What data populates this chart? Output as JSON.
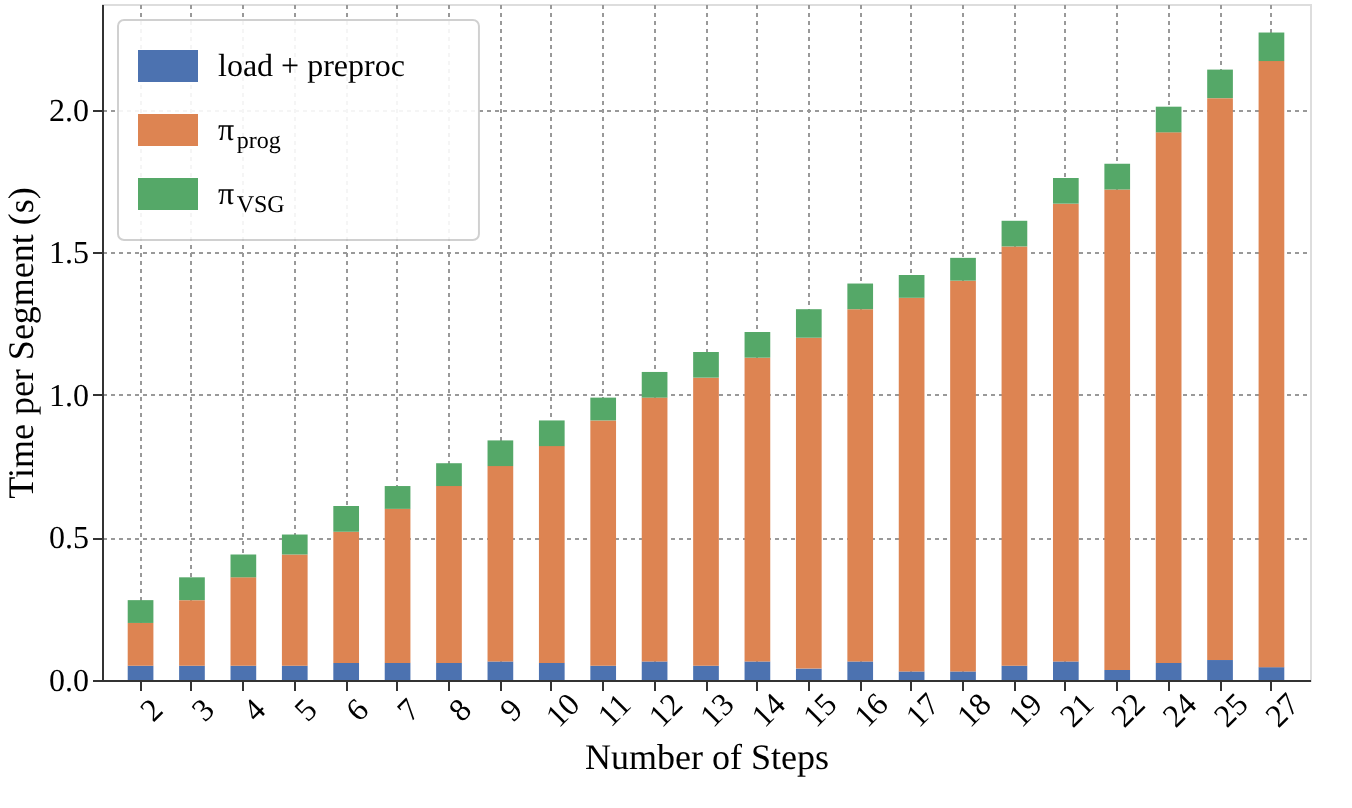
{
  "chart_data": {
    "type": "bar",
    "stacked": true,
    "xlabel": "Number of Steps",
    "ylabel": "Time per Segment (s)",
    "categories": [
      "2",
      "3",
      "4",
      "5",
      "6",
      "7",
      "8",
      "9",
      "10",
      "11",
      "12",
      "13",
      "14",
      "15",
      "16",
      "17",
      "18",
      "19",
      "21",
      "22",
      "24",
      "25",
      "27"
    ],
    "series": [
      {
        "name": "load + preproc",
        "color": "#4c72b0",
        "values": [
          0.05,
          0.05,
          0.05,
          0.05,
          0.06,
          0.06,
          0.06,
          0.065,
          0.06,
          0.05,
          0.065,
          0.05,
          0.065,
          0.04,
          0.065,
          0.03,
          0.03,
          0.05,
          0.065,
          0.035,
          0.06,
          0.07,
          0.045
        ]
      },
      {
        "name": "π$_{prog}$",
        "color": "#dd8452",
        "values": [
          0.15,
          0.23,
          0.31,
          0.39,
          0.46,
          0.54,
          0.62,
          0.685,
          0.76,
          0.86,
          0.925,
          1.01,
          1.065,
          1.16,
          1.235,
          1.31,
          1.37,
          1.47,
          1.605,
          1.685,
          1.86,
          1.97,
          2.125
        ]
      },
      {
        "name": "π$_{VSG}$",
        "color": "#55a868",
        "values": [
          0.08,
          0.08,
          0.08,
          0.07,
          0.09,
          0.08,
          0.08,
          0.09,
          0.09,
          0.08,
          0.09,
          0.09,
          0.09,
          0.1,
          0.09,
          0.08,
          0.08,
          0.09,
          0.09,
          0.09,
          0.09,
          0.1,
          0.1
        ]
      }
    ],
    "ylim": [
      0,
      2.37
    ],
    "yticks": [
      {
        "value": 0,
        "label": "0.0"
      },
      {
        "value": 0.5,
        "label": "0.5"
      },
      {
        "value": 1.0,
        "label": "1.0"
      },
      {
        "value": 1.5,
        "label": "1.5"
      },
      {
        "value": 2.0,
        "label": "2.0"
      }
    ],
    "grid": true,
    "legend": "top left"
  }
}
